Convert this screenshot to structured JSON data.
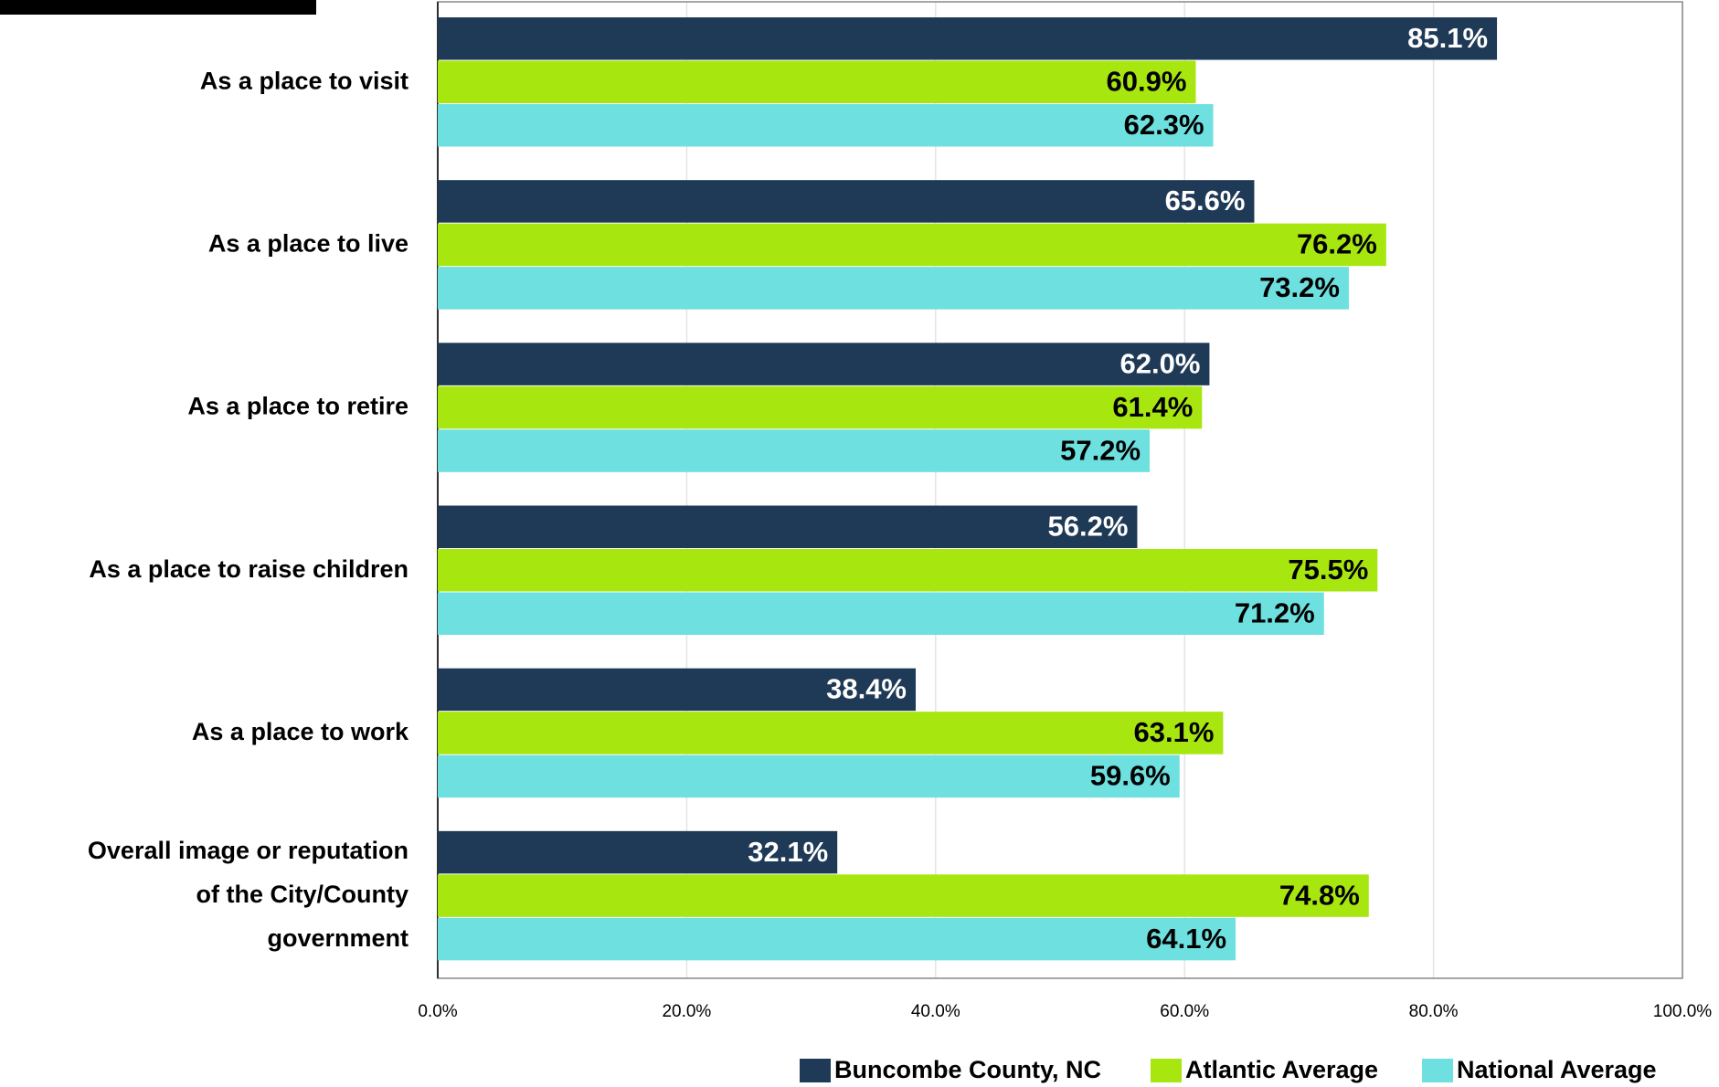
{
  "chart_data": {
    "type": "hbar",
    "categories": [
      "As a place to visit",
      "As a place to live",
      "As a place to retire",
      "As a place to raise children",
      "As a place to work",
      "Overall image or reputation of the City/County government"
    ],
    "series": [
      {
        "name": "Buncombe County, NC",
        "color": "#1f3a56",
        "values": [
          85.1,
          65.6,
          62.0,
          56.2,
          38.4,
          32.1
        ],
        "value_labels": [
          "85.1%",
          "65.6%",
          "62.0%",
          "56.2%",
          "38.4%",
          "32.1%"
        ]
      },
      {
        "name": "Atlantic Average",
        "color": "#a8e610",
        "values": [
          60.9,
          76.2,
          61.4,
          75.5,
          63.1,
          74.8
        ],
        "value_labels": [
          "60.9%",
          "76.2%",
          "61.4%",
          "75.5%",
          "63.1%",
          "74.8%"
        ]
      },
      {
        "name": "National Average",
        "color": "#6ee0e0",
        "values": [
          62.3,
          73.2,
          57.2,
          71.2,
          59.6,
          64.1
        ],
        "value_labels": [
          "62.3%",
          "73.2%",
          "57.2%",
          "71.2%",
          "59.6%",
          "64.1%"
        ]
      }
    ],
    "xlim": [
      0,
      100
    ],
    "xticks": [
      {
        "value": 0,
        "label": "0.0%"
      },
      {
        "value": 20,
        "label": "20.0%"
      },
      {
        "value": 40,
        "label": "40.0%"
      },
      {
        "value": 60,
        "label": "60.0%"
      },
      {
        "value": 80,
        "label": "80.0%"
      },
      {
        "value": 100,
        "label": "100.0%"
      }
    ],
    "grid": true,
    "legend": "bottom-right"
  }
}
